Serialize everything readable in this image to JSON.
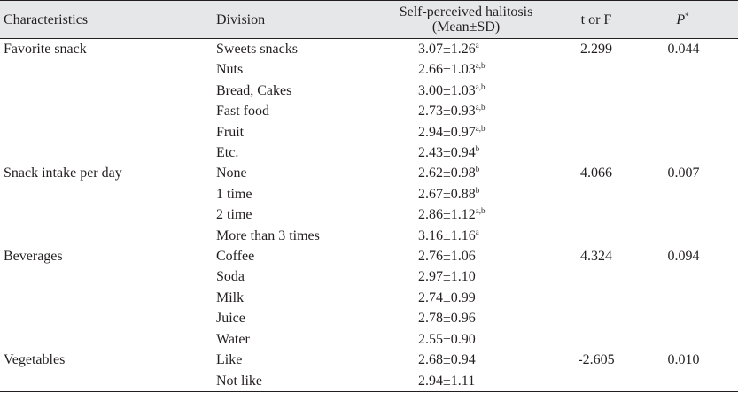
{
  "header": {
    "characteristics": "Characteristics",
    "division": "Division",
    "mean_line1": "Self-perceived halitosis",
    "mean_line2": "(Mean±SD)",
    "t_or_f": "t or F",
    "p": "P",
    "p_sup": "*"
  },
  "rows": [
    {
      "characteristic": "Favorite snack",
      "division": "Sweets snacks",
      "mean": "3.07±1.26",
      "sup": "a",
      "tf": "2.299",
      "p": "0.044"
    },
    {
      "characteristic": "",
      "division": "Nuts",
      "mean": "2.66±1.03",
      "sup": "a,b",
      "tf": "",
      "p": ""
    },
    {
      "characteristic": "",
      "division": "Bread, Cakes",
      "mean": "3.00±1.03",
      "sup": "a,b",
      "tf": "",
      "p": ""
    },
    {
      "characteristic": "",
      "division": "Fast food",
      "mean": "2.73±0.93",
      "sup": "a,b",
      "tf": "",
      "p": ""
    },
    {
      "characteristic": "",
      "division": "Fruit",
      "mean": "2.94±0.97",
      "sup": "a,b",
      "tf": "",
      "p": ""
    },
    {
      "characteristic": "",
      "division": "Etc.",
      "mean": "2.43±0.94",
      "sup": "b",
      "tf": "",
      "p": ""
    },
    {
      "characteristic": "Snack intake per day",
      "division": "None",
      "mean": "2.62±0.98",
      "sup": "b",
      "tf": "4.066",
      "p": "0.007"
    },
    {
      "characteristic": "",
      "division": "1 time",
      "mean": "2.67±0.88",
      "sup": "b",
      "tf": "",
      "p": ""
    },
    {
      "characteristic": "",
      "division": "2 time",
      "mean": "2.86±1.12",
      "sup": "a,b",
      "tf": "",
      "p": ""
    },
    {
      "characteristic": "",
      "division": "More than 3 times",
      "mean": "3.16±1.16",
      "sup": "a",
      "tf": "",
      "p": ""
    },
    {
      "characteristic": "Beverages",
      "division": "Coffee",
      "mean": "2.76±1.06",
      "sup": "",
      "tf": "4.324",
      "p": "0.094"
    },
    {
      "characteristic": "",
      "division": "Soda",
      "mean": "2.97±1.10",
      "sup": "",
      "tf": "",
      "p": ""
    },
    {
      "characteristic": "",
      "division": "Milk",
      "mean": "2.74±0.99",
      "sup": "",
      "tf": "",
      "p": ""
    },
    {
      "characteristic": "",
      "division": "Juice",
      "mean": "2.78±0.96",
      "sup": "",
      "tf": "",
      "p": ""
    },
    {
      "characteristic": "",
      "division": "Water",
      "mean": "2.55±0.90",
      "sup": "",
      "tf": "",
      "p": ""
    },
    {
      "characteristic": "Vegetables",
      "division": "Like",
      "mean": "2.68±0.94",
      "sup": "",
      "tf": "-2.605",
      "p": "0.010"
    },
    {
      "characteristic": "",
      "division": "Not like",
      "mean": "2.94±1.11",
      "sup": "",
      "tf": "",
      "p": ""
    }
  ]
}
